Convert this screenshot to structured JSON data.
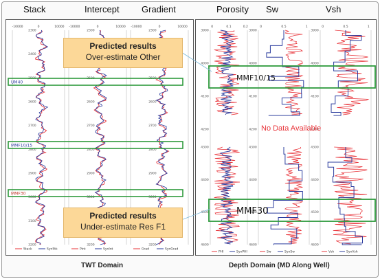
{
  "left_panel": {
    "headers": [
      "Stack",
      "Intercept",
      "Gradient"
    ],
    "domain_label": "TWT Domain",
    "depth_ticks": [
      "2300",
      "2400",
      "2500",
      "2600",
      "2700",
      "2800",
      "2900",
      "3000",
      "3100",
      "3200"
    ],
    "top_scales": [
      "-10000",
      "0",
      "10000",
      "-10000",
      "0",
      "10000",
      "-10000",
      "0",
      "10000"
    ],
    "markers": [
      "UM40",
      "MMF10/15",
      "MMF30"
    ],
    "legends": [
      [
        "Stack",
        "SynStk"
      ],
      [
        "Pint",
        "SynInt"
      ],
      [
        "Grad",
        "SynGrad"
      ]
    ]
  },
  "right_panel": {
    "headers": [
      "Porosity",
      "Sw",
      "Vsh"
    ],
    "domain_label": "Depth Domain (MD Along Well)",
    "upper_ticks": [
      "3900",
      "4000",
      "4100",
      "4200"
    ],
    "lower_ticks": [
      "4300",
      "4400",
      "4500",
      "4600"
    ],
    "no_data_text": "No Data Available",
    "markers": [
      "MMF10/15",
      "MMF30"
    ],
    "top_scales": [
      "0",
      "0.1",
      "0.2",
      "0",
      "0.5",
      "1",
      "0",
      "0.5",
      "1"
    ],
    "legends": [
      [
        "PHI",
        "SynPHI"
      ],
      [
        "Sw",
        "SynSw"
      ],
      [
        "Vsh",
        "SynVsh"
      ]
    ]
  },
  "callouts": [
    {
      "title": "Predicted results",
      "subtitle": "Over-estimate Other"
    },
    {
      "title": "Predicted results",
      "subtitle": "Under-estimate Res F1"
    }
  ],
  "colors": {
    "measured": "#e8343a",
    "synthetic": "#2b3c9e",
    "marker": "#2e9a3c",
    "callout": "#fcd898",
    "no_data": "#e8343a"
  }
}
